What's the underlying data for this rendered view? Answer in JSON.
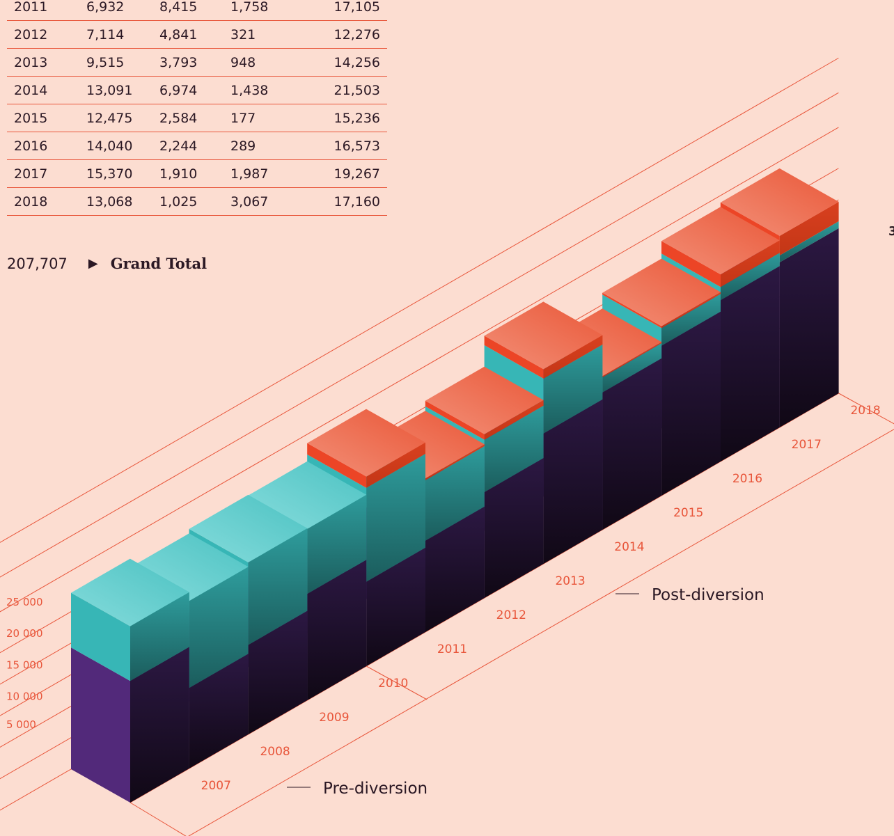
{
  "table": {
    "rows": [
      [
        "2011",
        "6,932",
        "8,415",
        "1,758",
        "17,105"
      ],
      [
        "2012",
        "7,114",
        "4,841",
        "321",
        "12,276"
      ],
      [
        "2013",
        "9,515",
        "3,793",
        "948",
        "14,256"
      ],
      [
        "2014",
        "13,091",
        "6,974",
        "1,438",
        "21,503"
      ],
      [
        "2015",
        "12,475",
        "2,584",
        "177",
        "15,236"
      ],
      [
        "2016",
        "14,040",
        "2,244",
        "289",
        "16,573"
      ],
      [
        "2017",
        "15,370",
        "1,910",
        "1,987",
        "19,267"
      ],
      [
        "2018",
        "13,068",
        "1,025",
        "3,067",
        "17,160"
      ]
    ]
  },
  "grand_total": {
    "value": "207,707",
    "arrow": "▶",
    "label": "Grand Total"
  },
  "edge_mark": "3",
  "colors": {
    "background": "#fcddd1",
    "purple": "#52297a",
    "teal": "#37b6b6",
    "red": "#ec4526",
    "line": "#e8553a"
  },
  "chart_data": {
    "type": "bar",
    "style": "isometric stacked columns",
    "categories": [
      "2007",
      "2008",
      "2009",
      "2010",
      "2011",
      "2012",
      "2013",
      "2014",
      "2015",
      "2016",
      "2017",
      "2018"
    ],
    "series": [
      {
        "values": [
          19300,
          12800,
          14200,
          16900,
          13400,
          14500,
          16800,
          20700,
          21800,
          23800,
          25600,
          26200
        ]
      },
      {
        "values": [
          8700,
          13800,
          13100,
          10300,
          14900,
          9600,
          8300,
          8700,
          2400,
          2800,
          2100,
          1100
        ]
      },
      {
        "values": [
          0,
          0,
          0,
          0,
          1800,
          300,
          900,
          1500,
          200,
          300,
          2000,
          3100
        ]
      }
    ],
    "y_tick_labels": [
      "5 000",
      "10 000",
      "15 000",
      "20 000",
      "25 000"
    ],
    "y_ticks": [
      5000,
      10000,
      15000,
      20000,
      25000
    ],
    "annotations": [
      "Pre-diversion",
      "Post-diversion"
    ]
  }
}
